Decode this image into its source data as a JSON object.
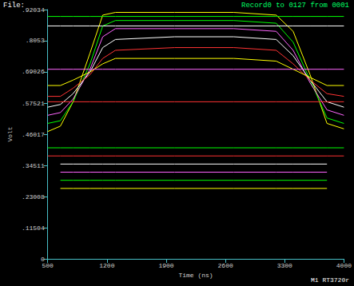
{
  "chart_data": {
    "type": "line",
    "title": "File:",
    "subtitle": "Record0 to 0127 from 0001",
    "annotations": [
      "M1 RT3720r"
    ],
    "x_label": "Time (ns)",
    "y_label": "Volt",
    "x": [
      500,
      650,
      800,
      1000,
      1150,
      1300,
      2000,
      2700,
      3200,
      3400,
      3600,
      3800,
      4000
    ],
    "xlim": [
      500,
      4000
    ],
    "xticks": [
      500,
      1200,
      1900,
      2600,
      3300,
      4000
    ],
    "ylim": [
      0,
      0.92034
    ],
    "yticks": [
      {
        "value": 0,
        "label": "0"
      },
      {
        "value": 0.11504,
        "label": ".11504"
      },
      {
        "value": 0.23008,
        "label": ".23008"
      },
      {
        "value": 0.34511,
        "label": ".34511"
      },
      {
        "value": 0.46017,
        "label": ".46017"
      },
      {
        "value": 0.57521,
        "label": ".57521"
      },
      {
        "value": 0.69026,
        "label": ".69026"
      },
      {
        "value": 0.8053,
        "label": ".8053"
      },
      {
        "value": 0.92034,
        "label": ".92034"
      }
    ],
    "grid": false,
    "series": [
      {
        "color": "#ffff00",
        "values": [
          0.47,
          0.49,
          0.58,
          0.76,
          0.9,
          0.91,
          0.91,
          0.91,
          0.9,
          0.84,
          0.68,
          0.5,
          0.48
        ]
      },
      {
        "color": "#00ff00",
        "values": [
          0.5,
          0.51,
          0.58,
          0.72,
          0.86,
          0.88,
          0.88,
          0.88,
          0.87,
          0.8,
          0.66,
          0.52,
          0.5
        ]
      },
      {
        "color": "#ff66ff",
        "values": [
          0.53,
          0.54,
          0.59,
          0.7,
          0.82,
          0.85,
          0.85,
          0.85,
          0.84,
          0.77,
          0.65,
          0.55,
          0.53
        ]
      },
      {
        "color": "#ffffff",
        "values": [
          0.56,
          0.57,
          0.61,
          0.69,
          0.78,
          0.81,
          0.82,
          0.82,
          0.81,
          0.75,
          0.66,
          0.58,
          0.56
        ]
      },
      {
        "color": "#ff3333",
        "values": [
          0.6,
          0.6,
          0.63,
          0.68,
          0.74,
          0.77,
          0.78,
          0.78,
          0.77,
          0.72,
          0.66,
          0.61,
          0.6
        ]
      },
      {
        "color": "#ffff00",
        "values": [
          0.64,
          0.64,
          0.66,
          0.69,
          0.72,
          0.74,
          0.74,
          0.74,
          0.73,
          0.7,
          0.67,
          0.64,
          0.64
        ]
      },
      {
        "color": "#ff66ff",
        "values": [
          0.7,
          0.7,
          0.7,
          0.7,
          0.7,
          0.7,
          0.7,
          0.7,
          0.7,
          0.7,
          0.7,
          0.7,
          0.7
        ]
      },
      {
        "color": "#00ff00",
        "values": [
          0.895,
          0.895,
          0.895,
          0.895,
          0.895,
          0.895,
          0.895,
          0.895,
          0.895,
          0.895,
          0.895,
          0.895,
          0.895
        ]
      },
      {
        "color": "#ffffff",
        "values": [
          0.86,
          0.86,
          0.86,
          0.86,
          0.86,
          0.86,
          0.86,
          0.86,
          0.86,
          0.86,
          0.86,
          0.86,
          0.86
        ]
      },
      {
        "color": "#ff3333",
        "values": [
          0.58,
          0.58,
          0.58,
          0.58,
          0.58,
          0.58,
          0.58,
          0.58,
          0.58,
          0.58,
          0.58,
          0.58,
          0.58
        ]
      },
      {
        "color": "#ffff00",
        "values": [
          null,
          0.26,
          0.26,
          0.26,
          0.26,
          0.26,
          0.26,
          0.26,
          0.26,
          0.26,
          0.26,
          0.26,
          null
        ]
      },
      {
        "color": "#00ff00",
        "values": [
          null,
          0.29,
          0.29,
          0.29,
          0.29,
          0.29,
          0.29,
          0.29,
          0.29,
          0.29,
          0.29,
          0.29,
          null
        ]
      },
      {
        "color": "#ff66ff",
        "values": [
          null,
          0.32,
          0.32,
          0.32,
          0.32,
          0.32,
          0.32,
          0.32,
          0.32,
          0.32,
          0.32,
          0.32,
          null
        ]
      },
      {
        "color": "#ffffff",
        "values": [
          null,
          0.35,
          0.35,
          0.35,
          0.35,
          0.35,
          0.35,
          0.35,
          0.35,
          0.35,
          0.35,
          0.35,
          null
        ]
      },
      {
        "color": "#ff3333",
        "values": [
          0.38,
          0.38,
          0.38,
          0.38,
          0.38,
          0.38,
          0.38,
          0.38,
          0.38,
          0.38,
          0.38,
          0.38,
          0.38
        ]
      },
      {
        "color": "#00ff00",
        "values": [
          0.41,
          0.41,
          0.41,
          0.41,
          0.41,
          0.41,
          0.41,
          0.41,
          0.41,
          0.41,
          0.41,
          0.41,
          0.41
        ]
      }
    ]
  }
}
